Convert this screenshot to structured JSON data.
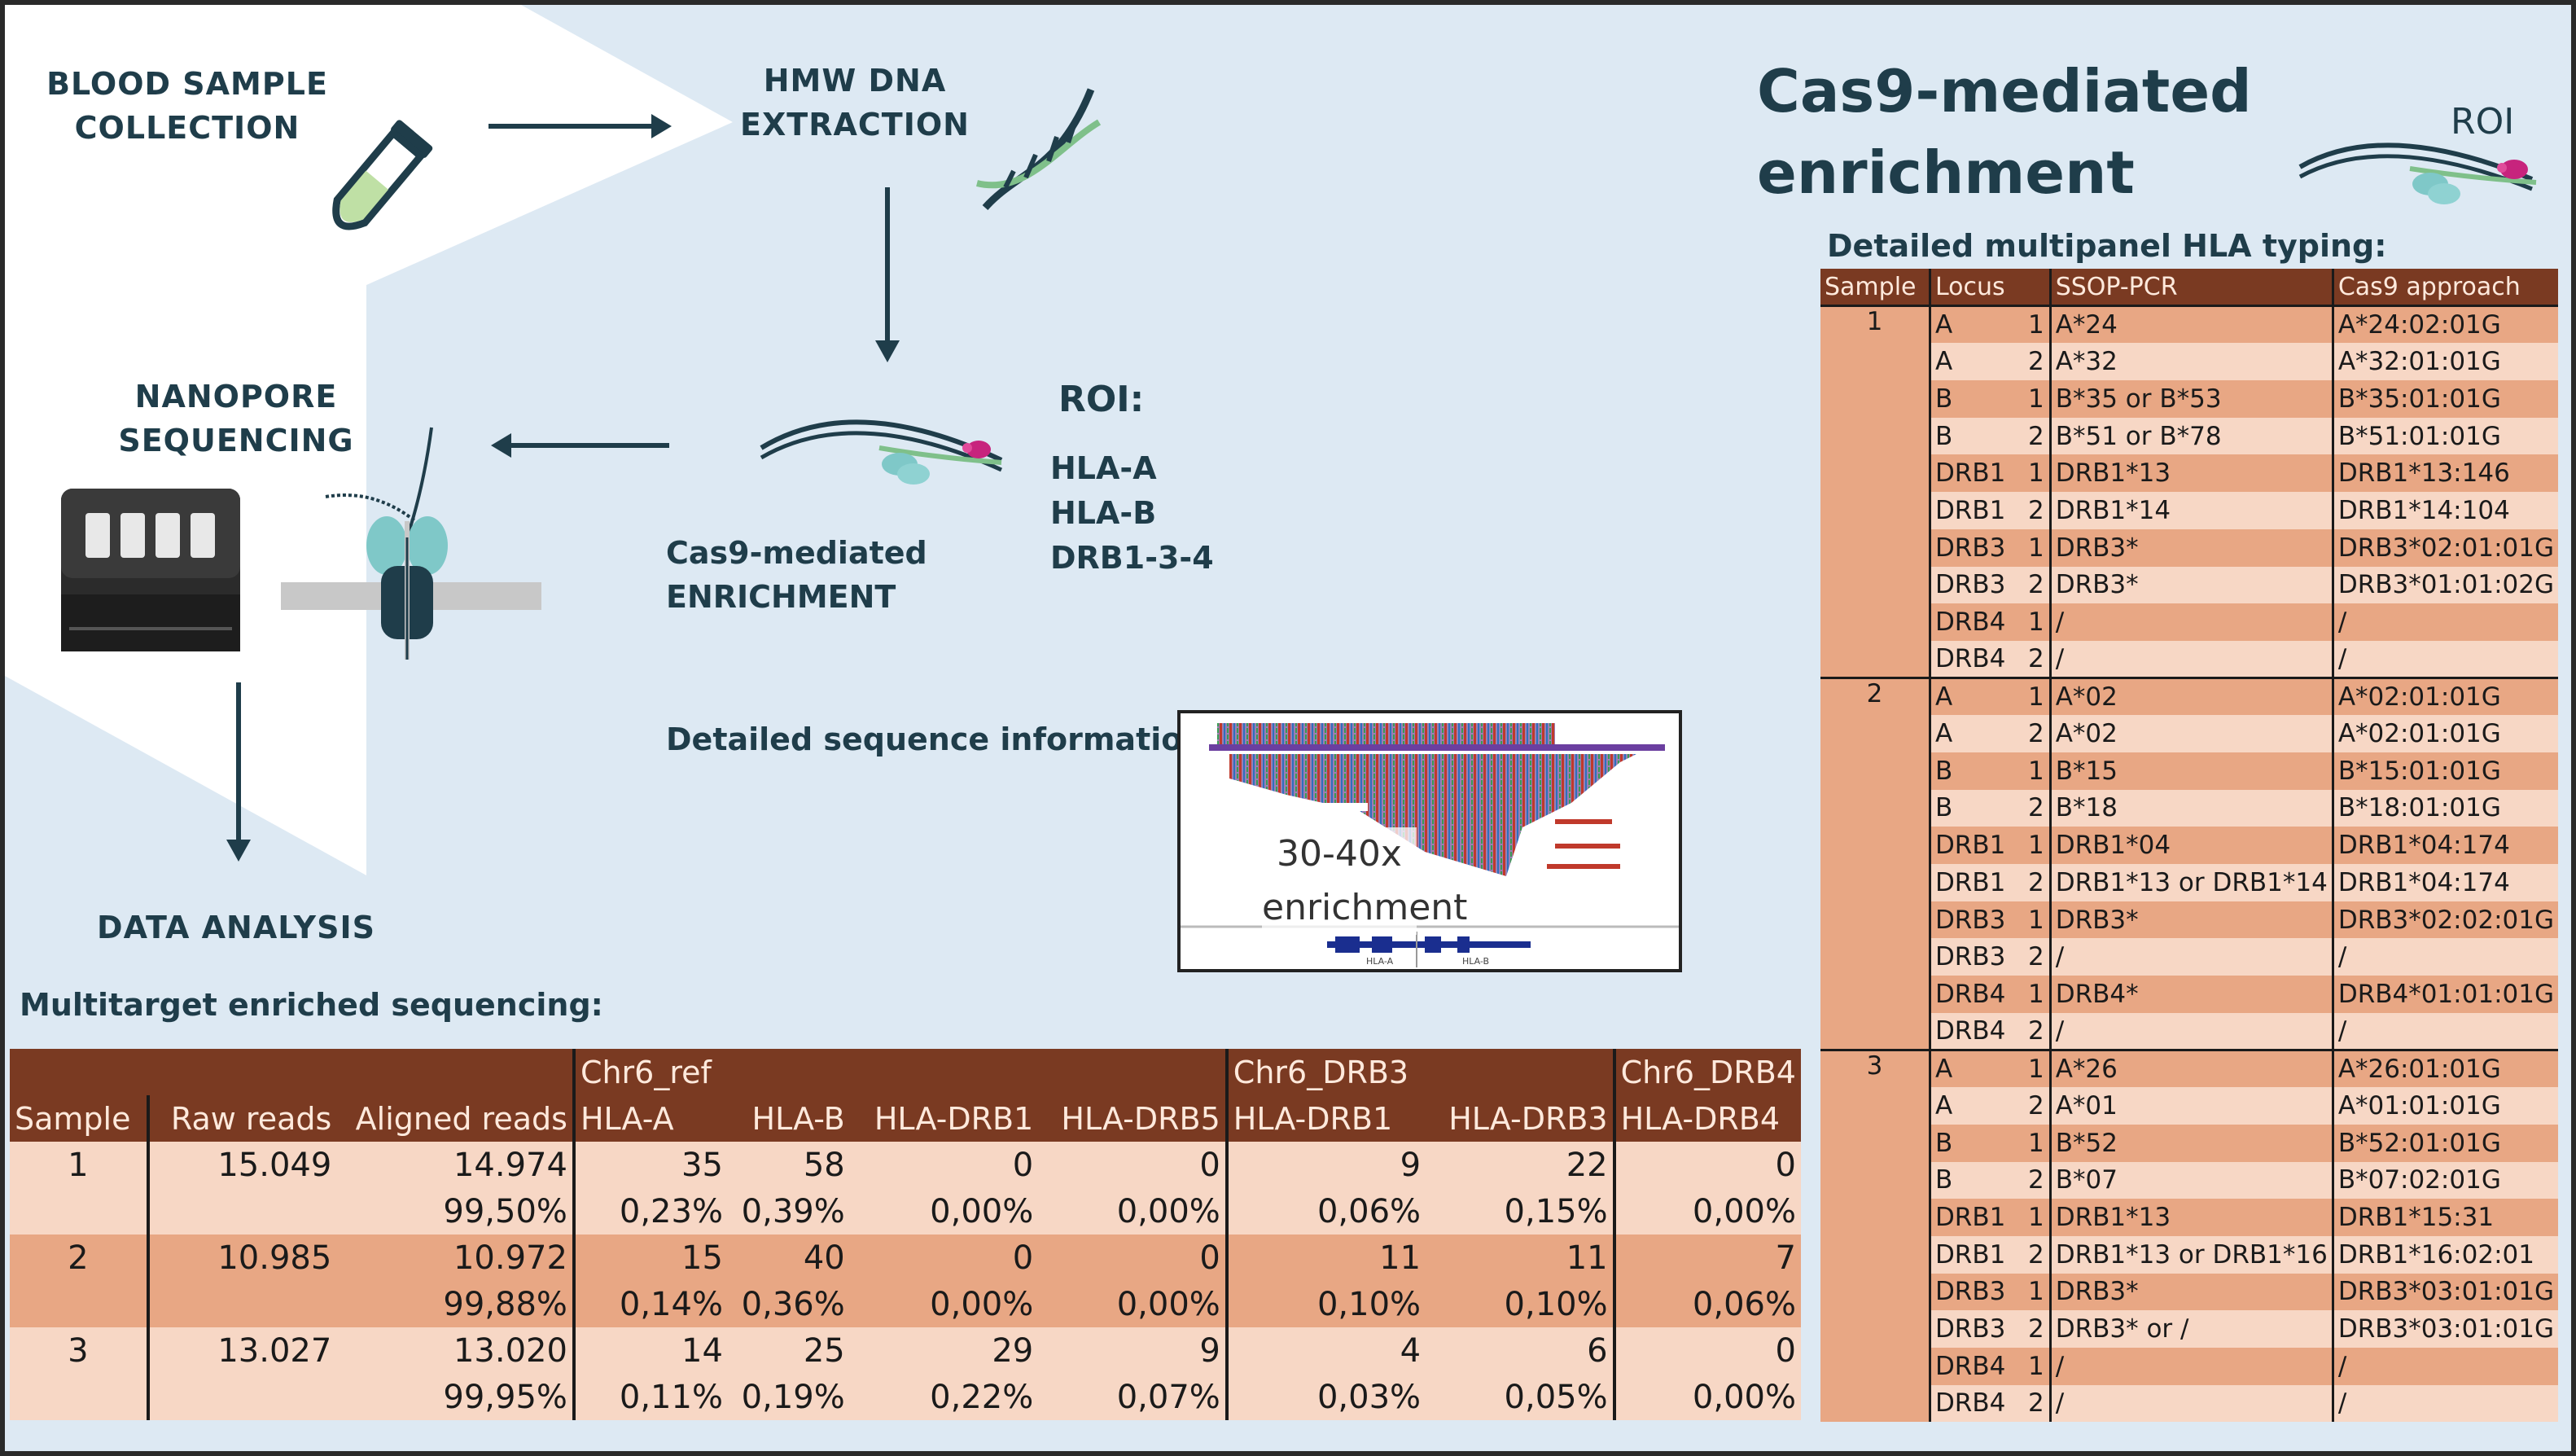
{
  "workflow": {
    "steps": {
      "blood": [
        "BLOOD SAMPLE",
        "COLLECTION"
      ],
      "hmw": [
        "HMW DNA",
        "EXTRACTION"
      ],
      "nanopore": [
        "NANOPORE",
        "SEQUENCING"
      ],
      "cas9": [
        "Cas9-mediated",
        "ENRICHMENT"
      ],
      "analysis": "DATA ANALYSIS"
    },
    "roi": {
      "title": "ROI:",
      "targets": [
        "HLA-A",
        "HLA-B",
        "DRB1-3-4"
      ]
    },
    "detail_label": "Detailed sequence information:",
    "seq_text": [
      "30-40x",
      "enrichment"
    ],
    "seq_axis": [
      "HLA-A",
      "HLA-B"
    ]
  },
  "right_panel": {
    "title": [
      "Cas9-mediated",
      "enrichment"
    ],
    "roi_label": "ROI",
    "subtitle": "Detailed multipanel HLA typing:",
    "headers": [
      "Sample",
      "Locus",
      "SSOP-PCR",
      "Cas9 approach"
    ],
    "samples": [
      {
        "sample": "1",
        "rows": [
          [
            "A",
            "1",
            "A*24",
            "A*24:02:01G"
          ],
          [
            "A",
            "2",
            "A*32",
            "A*32:01:01G"
          ],
          [
            "B",
            "1",
            "B*35 or B*53",
            "B*35:01:01G"
          ],
          [
            "B",
            "2",
            "B*51 or B*78",
            "B*51:01:01G"
          ],
          [
            "DRB1",
            "1",
            "DRB1*13",
            "DRB1*13:146"
          ],
          [
            "DRB1",
            "2",
            "DRB1*14",
            "DRB1*14:104"
          ],
          [
            "DRB3",
            "1",
            "DRB3*",
            "DRB3*02:01:01G"
          ],
          [
            "DRB3",
            "2",
            "DRB3*",
            "DRB3*01:01:02G"
          ],
          [
            "DRB4",
            "1",
            "/",
            "/"
          ],
          [
            "DRB4",
            "2",
            "/",
            "/"
          ]
        ]
      },
      {
        "sample": "2",
        "rows": [
          [
            "A",
            "1",
            "A*02",
            "A*02:01:01G"
          ],
          [
            "A",
            "2",
            "A*02",
            "A*02:01:01G"
          ],
          [
            "B",
            "1",
            "B*15",
            "B*15:01:01G"
          ],
          [
            "B",
            "2",
            "B*18",
            "B*18:01:01G"
          ],
          [
            "DRB1",
            "1",
            "DRB1*04",
            "DRB1*04:174"
          ],
          [
            "DRB1",
            "2",
            "DRB1*13 or DRB1*14",
            "DRB1*04:174"
          ],
          [
            "DRB3",
            "1",
            "DRB3*",
            "DRB3*02:02:01G"
          ],
          [
            "DRB3",
            "2",
            "/",
            "/"
          ],
          [
            "DRB4",
            "1",
            "DRB4*",
            "DRB4*01:01:01G"
          ],
          [
            "DRB4",
            "2",
            "/",
            "/"
          ]
        ]
      },
      {
        "sample": "3",
        "rows": [
          [
            "A",
            "1",
            "A*26",
            "A*26:01:01G"
          ],
          [
            "A",
            "2",
            "A*01",
            "A*01:01:01G"
          ],
          [
            "B",
            "1",
            "B*52",
            "B*52:01:01G"
          ],
          [
            "B",
            "2",
            "B*07",
            "B*07:02:01G"
          ],
          [
            "DRB1",
            "1",
            "DRB1*13",
            "DRB1*15:31"
          ],
          [
            "DRB1",
            "2",
            "DRB1*13 or DRB1*16",
            "DRB1*16:02:01"
          ],
          [
            "DRB3",
            "1",
            "DRB3*",
            "DRB3*03:01:01G"
          ],
          [
            "DRB3",
            "2",
            "DRB3* or /",
            "DRB3*03:01:01G"
          ],
          [
            "DRB4",
            "1",
            "/",
            "/"
          ],
          [
            "DRB4",
            "2",
            "/",
            "/"
          ]
        ]
      }
    ]
  },
  "multitarget": {
    "title": "Multitarget enriched sequencing:",
    "group_headers": [
      "Chr6_ref",
      "Chr6_DRB3",
      "Chr6_DRB4"
    ],
    "headers": [
      "Sample",
      "Raw reads",
      "Aligned reads",
      "HLA-A",
      "HLA-B",
      "HLA-DRB1",
      "HLA-DRB5",
      "HLA-DRB1",
      "HLA-DRB3",
      "HLA-DRB4"
    ],
    "rows": [
      {
        "sample": "1",
        "raw": "15.049",
        "aligned": "14.974",
        "counts": [
          "35",
          "58",
          "0",
          "0",
          "9",
          "22",
          "0"
        ],
        "aligned_pct": "99,50%",
        "pcts": [
          "0,23%",
          "0,39%",
          "0,00%",
          "0,00%",
          "0,06%",
          "0,15%",
          "0,00%"
        ]
      },
      {
        "sample": "2",
        "raw": "10.985",
        "aligned": "10.972",
        "counts": [
          "15",
          "40",
          "0",
          "0",
          "11",
          "11",
          "7"
        ],
        "aligned_pct": "99,88%",
        "pcts": [
          "0,14%",
          "0,36%",
          "0,00%",
          "0,00%",
          "0,10%",
          "0,10%",
          "0,06%"
        ]
      },
      {
        "sample": "3",
        "raw": "13.027",
        "aligned": "13.020",
        "counts": [
          "14",
          "25",
          "29",
          "9",
          "4",
          "6",
          "0"
        ],
        "aligned_pct": "99,95%",
        "pcts": [
          "0,11%",
          "0,19%",
          "0,22%",
          "0,07%",
          "0,03%",
          "0,05%",
          "0,00%"
        ]
      }
    ]
  },
  "colors": {
    "dark_text": "#1f3d4a",
    "header_brown": "#7a3a22",
    "row_dark": "#e8a784",
    "row_light": "#f7d7c5",
    "background": "#dde9f3"
  }
}
